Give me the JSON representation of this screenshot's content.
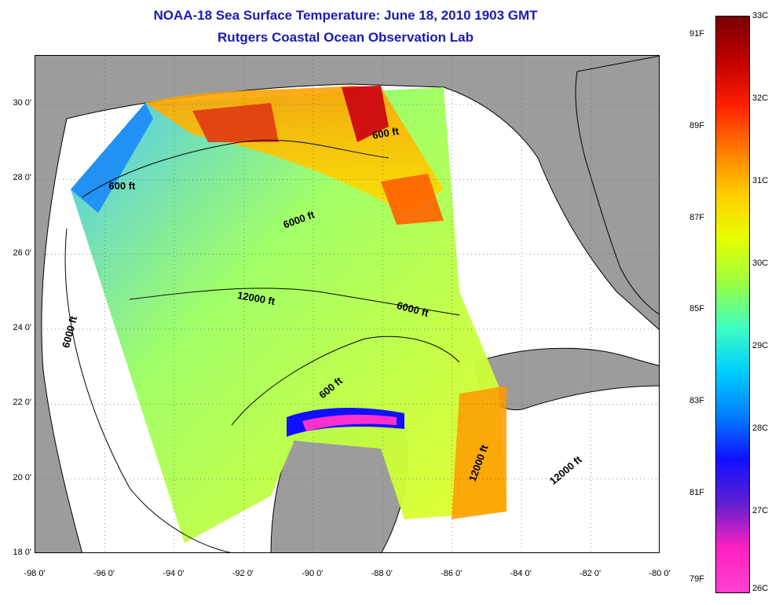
{
  "title": {
    "line1": "NOAA-18 Sea Surface Temperature:  June 18, 2010 1903 GMT",
    "line2": "Rutgers Coastal Ocean Observation Lab"
  },
  "map": {
    "lon_range": [
      -98,
      -80
    ],
    "lat_range": [
      18,
      31.3
    ],
    "x_ticks": [
      "-98 0'",
      "-96 0'",
      "-94 0'",
      "-92 0'",
      "-90 0'",
      "-88 0'",
      "-86 0'",
      "-84 0'",
      "-82 0'",
      "-80 0'"
    ],
    "y_ticks": [
      "30 0'",
      "28 0'",
      "26 0'",
      "24 0'",
      "22 0'",
      "20 0'",
      "18 0'"
    ],
    "land_color": "#9c9c9c",
    "nodata_color": "#ffffff",
    "contour_labels": [
      {
        "text": "600 ft",
        "lon": -95.3,
        "lat": 27.8,
        "angle": 0
      },
      {
        "text": "600 ft",
        "lon": -87.7,
        "lat": 29.2,
        "angle": -10
      },
      {
        "text": "6000 ft",
        "lon": -90.3,
        "lat": 26.9,
        "angle": -20
      },
      {
        "text": "12000 ft",
        "lon": -91.6,
        "lat": 24.8,
        "angle": 10
      },
      {
        "text": "6000 ft",
        "lon": -87.0,
        "lat": 24.5,
        "angle": 15
      },
      {
        "text": "6000 ft",
        "lon": -96.9,
        "lat": 23.9,
        "angle": -75
      },
      {
        "text": "600 ft",
        "lon": -89.3,
        "lat": 22.4,
        "angle": -40
      },
      {
        "text": "12000 ft",
        "lon": -85.2,
        "lat": 20.4,
        "angle": -70
      },
      {
        "text": "12000 ft",
        "lon": -82.7,
        "lat": 20.2,
        "angle": -40
      }
    ]
  },
  "colorbar": {
    "celsius_labels": [
      "33C",
      "32C",
      "31C",
      "30C",
      "29C",
      "28C",
      "27C",
      "26C"
    ],
    "fahrenheit_labels": [
      "91F",
      "89F",
      "87F",
      "85F",
      "83F",
      "81F",
      "79F"
    ],
    "colors": [
      "#7a0000",
      "#c00000",
      "#ff2000",
      "#ff7a00",
      "#ffcc00",
      "#e8ff00",
      "#9cff40",
      "#40ffc0",
      "#00d0ff",
      "#0080ff",
      "#1010ff",
      "#6020d0",
      "#ff20c0",
      "#ff40d0"
    ]
  }
}
